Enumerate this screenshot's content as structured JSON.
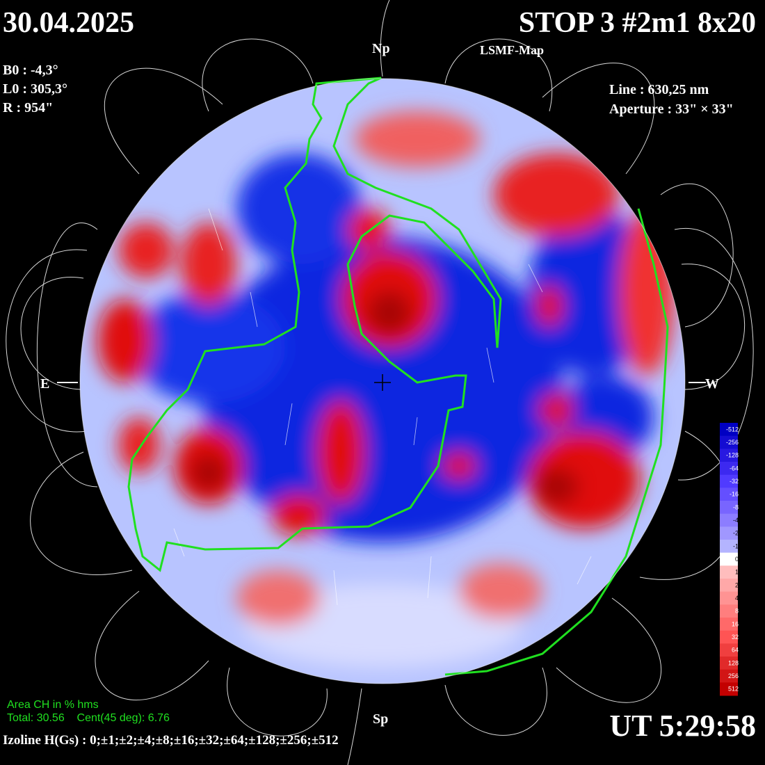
{
  "header": {
    "date": "30.04.2025",
    "title": "STOP 3 #2m1 8x20",
    "subtitle": "LSMF-Map"
  },
  "parameters": {
    "left": [
      "B0 : -4,3°",
      "L0 : 305,3°",
      "R  : 954\""
    ],
    "right": [
      "Line : 630,25 nm",
      "Aperture : 33\" × 33\""
    ]
  },
  "markers": {
    "north": "Np",
    "south": "Sp",
    "east": "E",
    "west": "W"
  },
  "coronal_hole": {
    "heading": "Area CH in % hms",
    "stats": "Total: 30.56    Cent(45 deg): 6.76"
  },
  "time": "UT 5:29:58",
  "isolines": "Izoline H(Gs) : 0;±1;±2;±4;±8;±16;±32;±64;±128;±256;±512",
  "colorbar": {
    "labels": [
      "-512",
      "-256",
      "-128",
      "-64",
      "-32",
      "-16",
      "-8",
      "-4",
      "-2",
      "-1",
      "0",
      "1",
      "2",
      "4",
      "8",
      "16",
      "32",
      "64",
      "128",
      "256",
      "512"
    ]
  }
}
